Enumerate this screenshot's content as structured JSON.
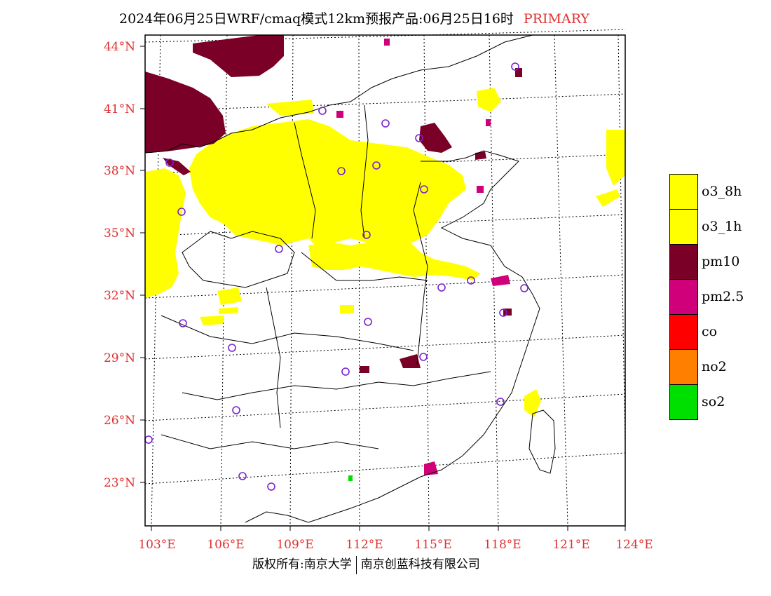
{
  "title": {
    "main": "2024年06月25日WRF/cmaq模式12km预报产品:06月25日16时",
    "tag": "PRIMARY"
  },
  "footer": {
    "left": "版权所有:南京大学",
    "right": "南京创蓝科技有限公司"
  },
  "axes": {
    "lat_labels": [
      "44°N",
      "41°N",
      "38°N",
      "35°N",
      "32°N",
      "29°N",
      "26°N",
      "23°N"
    ],
    "lon_labels": [
      "103°E",
      "106°E",
      "109°E",
      "112°E",
      "115°E",
      "118°E",
      "121°E",
      "124°E"
    ]
  },
  "legend": [
    {
      "label": "o3_8h",
      "color": "#ffff00"
    },
    {
      "label": "o3_1h",
      "color": "#ffff00"
    },
    {
      "label": "pm10",
      "color": "#7a0028"
    },
    {
      "label": "pm2.5",
      "color": "#d0007a"
    },
    {
      "label": "co",
      "color": "#ff0000"
    },
    {
      "label": "no2",
      "color": "#ff7f00"
    },
    {
      "label": "so2",
      "color": "#00e000"
    }
  ],
  "colors": {
    "tick_label": "#e03030",
    "station_marker": "#7a20d0",
    "boundary": "#000000"
  }
}
